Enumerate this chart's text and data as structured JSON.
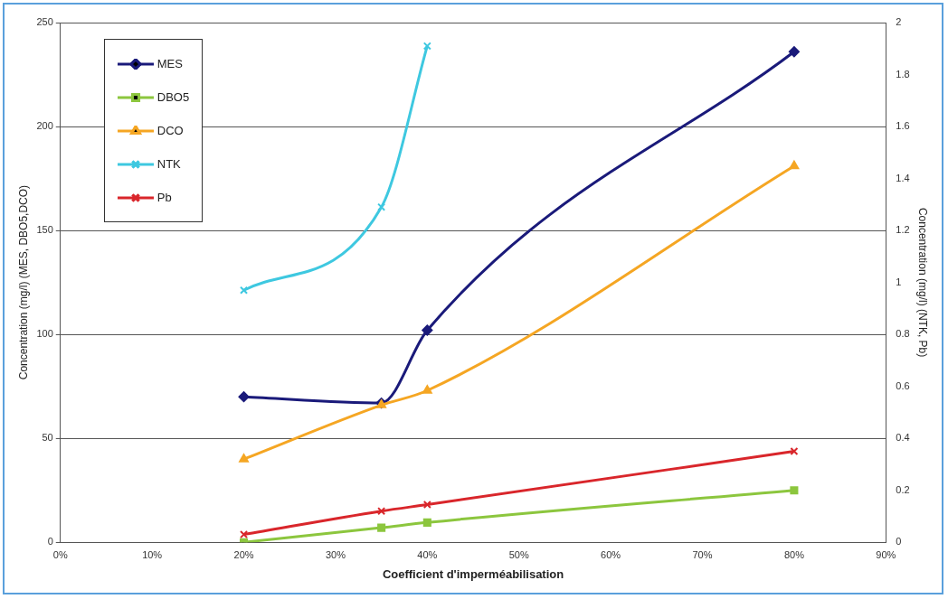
{
  "chart_data": {
    "type": "line",
    "xlabel": "Coefficient d'imperméabilisation",
    "ylabel": "Concentration (mg/l) (MES, DBO5,DCO)",
    "y2label": "Concentration (mg/l) (NTK, Pb)",
    "x": [
      20,
      35,
      40,
      80
    ],
    "series": [
      {
        "name": "MES",
        "color": "#1a1a7a",
        "values": [
          70,
          67,
          102,
          236
        ],
        "marker": "diamond"
      },
      {
        "name": "DBO5",
        "color": "#8cc63e",
        "values": [
          0,
          7,
          9.5,
          25
        ],
        "marker": "square"
      },
      {
        "name": "DCO",
        "color": "#f5a623",
        "values": [
          40,
          66,
          73,
          181
        ],
        "marker": "triangle"
      },
      {
        "name": "NTK",
        "color": "#3ec8e0",
        "x": [
          20,
          35,
          40
        ],
        "values": [
          0.97,
          1.29,
          1.91
        ],
        "marker": "cross",
        "axis": "y2"
      },
      {
        "name": "Pb",
        "color": "#d9262b",
        "values": [
          0.03,
          0.12,
          0.145,
          0.35
        ],
        "marker": "cross",
        "axis": "y2"
      }
    ],
    "xlim": [
      0,
      90
    ],
    "xticks": [
      {
        "value": 0,
        "label": "0%"
      },
      {
        "value": 10,
        "label": "10%"
      },
      {
        "value": 20,
        "label": "20%"
      },
      {
        "value": 30,
        "label": "30%"
      },
      {
        "value": 40,
        "label": "40%"
      },
      {
        "value": 50,
        "label": "50%"
      },
      {
        "value": 60,
        "label": "60%"
      },
      {
        "value": 70,
        "label": "70%"
      },
      {
        "value": 80,
        "label": "80%"
      },
      {
        "value": 90,
        "label": "90%"
      }
    ],
    "ylim": [
      0,
      250
    ],
    "yticks": [
      0,
      50,
      100,
      150,
      200,
      250
    ],
    "y2lim": [
      0,
      2
    ],
    "y2ticks": [
      0,
      0.2,
      0.4,
      0.6,
      0.8,
      1,
      1.2,
      1.4,
      1.6,
      1.8,
      2
    ],
    "grid": "y",
    "legend": "top left",
    "line_style": "solid"
  }
}
